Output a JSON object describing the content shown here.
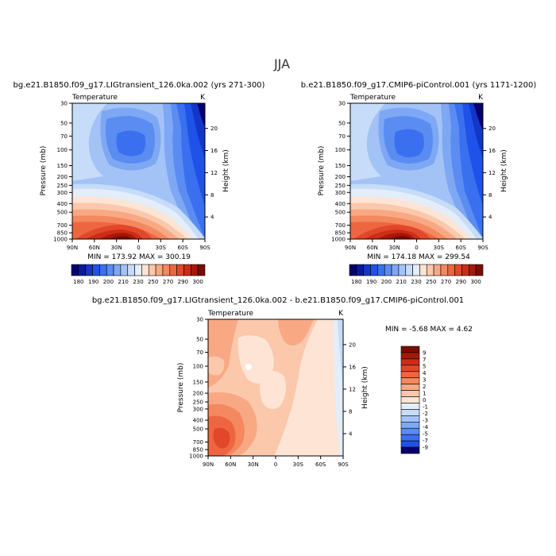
{
  "figure": {
    "season": "JJA"
  },
  "chart_data": [
    {
      "type": "heatmap",
      "id": "case",
      "title": "bg.e21.B1850.f09_g17.LIGtransient_126.0ka.002 (yrs 271-300)",
      "subtitle": "Temperature",
      "units": "K",
      "xlabel": "",
      "ylabel": "Pressure (mb)",
      "right_label": "Height (km)",
      "x_ticks": [
        "90N",
        "60N",
        "30N",
        "0",
        "30S",
        "60S",
        "90S"
      ],
      "y_ticks": [
        "30",
        "50",
        "70",
        "100",
        "150",
        "200",
        "250",
        "300",
        "400",
        "500",
        "700",
        "850",
        "1000"
      ],
      "height_ticks": [
        "20",
        "16",
        "12",
        "8",
        "4"
      ],
      "stats": "MIN = 173.92   MAX = 300.19",
      "min": 173.92,
      "max": 300.19
    },
    {
      "type": "heatmap",
      "id": "control",
      "title": "b.e21.B1850.f09_g17.CMIP6-piControl.001 (yrs 1171-1200)",
      "subtitle": "Temperature",
      "units": "K",
      "xlabel": "",
      "ylabel": "Pressure (mb)",
      "right_label": "Height (km)",
      "x_ticks": [
        "90N",
        "60N",
        "30N",
        "0",
        "30S",
        "60S",
        "90S"
      ],
      "y_ticks": [
        "30",
        "50",
        "70",
        "100",
        "150",
        "200",
        "250",
        "300",
        "400",
        "500",
        "700",
        "850",
        "1000"
      ],
      "height_ticks": [
        "20",
        "16",
        "12",
        "8",
        "4"
      ],
      "stats": "MIN = 174.18   MAX = 299.54",
      "min": 174.18,
      "max": 299.54
    },
    {
      "type": "heatmap",
      "id": "diff",
      "title": "bg.e21.B1850.f09_g17.LIGtransient_126.0ka.002 - b.e21.B1850.f09_g17.CMIP6-piControl.001",
      "subtitle": "Temperature",
      "units": "K",
      "xlabel": "",
      "ylabel": "Pressure (mb)",
      "right_label": "Height (km)",
      "x_ticks": [
        "90N",
        "60N",
        "30N",
        "0",
        "30S",
        "60S",
        "90S"
      ],
      "y_ticks": [
        "30",
        "50",
        "70",
        "100",
        "150",
        "200",
        "250",
        "300",
        "400",
        "500",
        "700",
        "850",
        "1000"
      ],
      "height_ticks": [
        "20",
        "16",
        "12",
        "8",
        "4"
      ],
      "stats": "MIN =  -5.68   MAX =   4.62",
      "min": -5.68,
      "max": 4.62
    }
  ],
  "colorbars": {
    "temperature": {
      "labels": [
        "180",
        "190",
        "200",
        "210",
        "230",
        "250",
        "270",
        "290",
        "300"
      ],
      "colors": [
        "#08006e",
        "#0b1a9c",
        "#1236c8",
        "#1f52e8",
        "#3a70f0",
        "#5b8cf2",
        "#7ea8f4",
        "#a3c3f6",
        "#c7dcf8",
        "#e4eefa",
        "#fde4d4",
        "#fbc8ac",
        "#f8a984",
        "#f4885f",
        "#ee6640",
        "#e2472a",
        "#cc2c18",
        "#a81808",
        "#7c0c02"
      ]
    },
    "difference": {
      "labels": [
        "9",
        "7",
        "5",
        "4",
        "3",
        "2",
        "1",
        "0",
        "-1",
        "-2",
        "-3",
        "-4",
        "-5",
        "-7",
        "-9"
      ],
      "colors": [
        "#7c0c02",
        "#a81808",
        "#cc2c18",
        "#e2472a",
        "#ee6640",
        "#f4885f",
        "#f8a984",
        "#fbc8ac",
        "#fde4d4",
        "#e4eefa",
        "#c7dcf8",
        "#a3c3f6",
        "#7ea8f4",
        "#5b8cf2",
        "#3a70f0",
        "#1f52e8",
        "#08006e"
      ]
    }
  }
}
